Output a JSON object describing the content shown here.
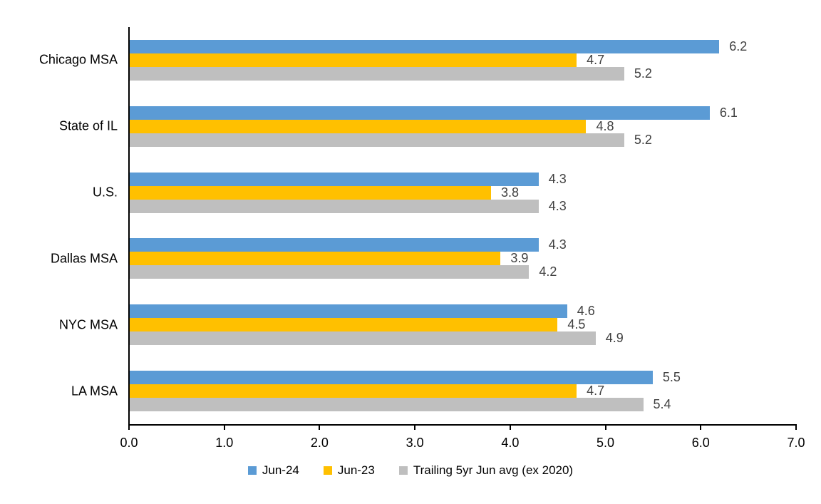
{
  "chart_data": {
    "type": "bar",
    "orientation": "horizontal",
    "title": "",
    "xlabel": "",
    "ylabel": "",
    "categories": [
      "Chicago MSA",
      "State of IL",
      "U.S.",
      "Dallas MSA",
      "NYC MSA",
      "LA MSA"
    ],
    "series": [
      {
        "name": "Jun-24",
        "color": "#5B9BD5",
        "values": [
          6.2,
          6.1,
          4.3,
          4.3,
          4.6,
          5.5
        ]
      },
      {
        "name": "Jun-23",
        "color": "#FFC000",
        "values": [
          4.7,
          4.8,
          3.8,
          3.9,
          4.5,
          4.7
        ]
      },
      {
        "name": "Trailing 5yr Jun avg (ex 2020)",
        "color": "#BFBFBF",
        "values": [
          5.2,
          5.2,
          4.3,
          4.2,
          4.9,
          5.4
        ]
      }
    ],
    "xlim": [
      0,
      7
    ],
    "x_ticks": [
      "0.0",
      "1.0",
      "2.0",
      "3.0",
      "4.0",
      "5.0",
      "6.0",
      "7.0"
    ],
    "grid": false,
    "data_labels": true,
    "legend_position": "bottom"
  },
  "colors": {
    "axis_line": "#000000",
    "data_label_text": "#404040",
    "category_text": "#000000",
    "tick_text": "#000000"
  }
}
